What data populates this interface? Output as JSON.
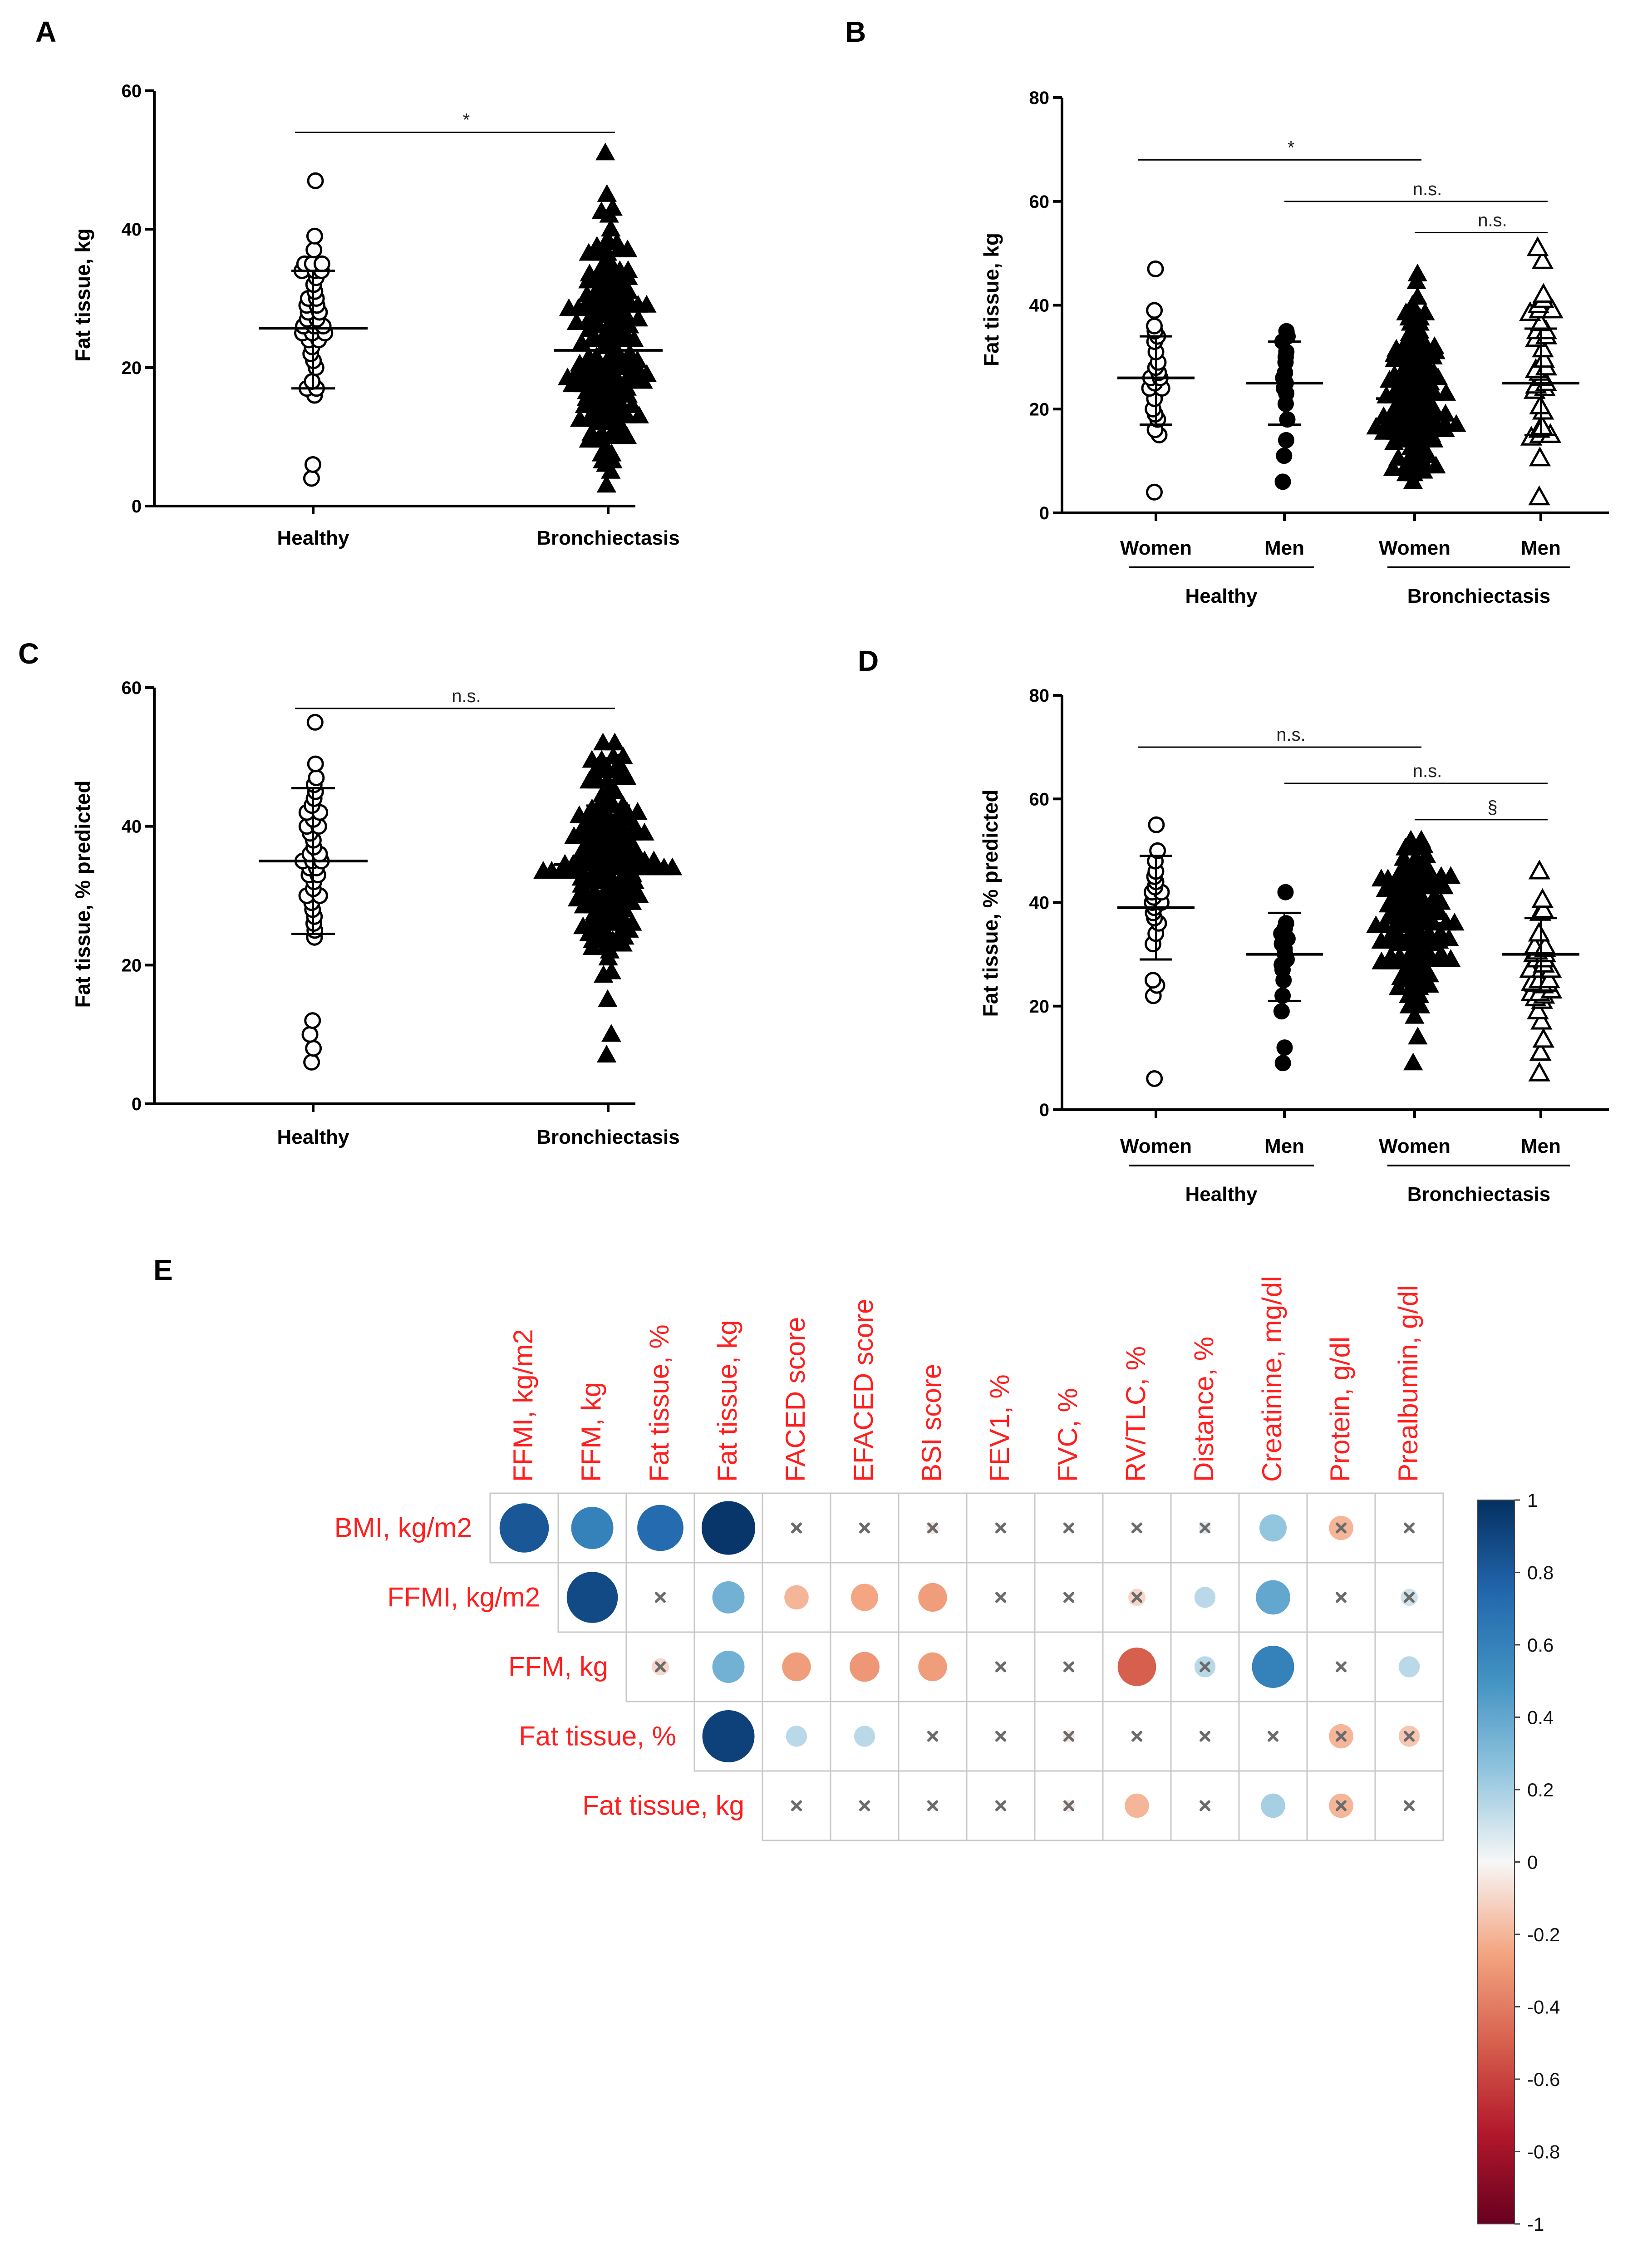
{
  "chart_data": [
    {
      "id": "A",
      "panel_label": "A",
      "type": "scatter",
      "ylabel": "Fat tissue, kg",
      "ylim": [
        0,
        60
      ],
      "yticks": [
        0,
        20,
        40,
        60
      ],
      "categories": [
        "Healthy",
        "Bronchiectasis"
      ],
      "groups": [
        {
          "name": "Healthy",
          "marker": "circle-open",
          "n": 38,
          "values": [
            47,
            39,
            37,
            35,
            35,
            35,
            34,
            34,
            34,
            33,
            32,
            31,
            30,
            30,
            29,
            29,
            28,
            28,
            27,
            27,
            26,
            26,
            26,
            25,
            25,
            25,
            24,
            24,
            23,
            22,
            21,
            20,
            18,
            17,
            17,
            16,
            6,
            4
          ],
          "mean": 25.7,
          "sd_low": 17,
          "sd_high": 34
        },
        {
          "name": "Bronchiectasis",
          "marker": "triangle-filled",
          "n": 160,
          "min": 3,
          "max": 51,
          "mean": 22.5,
          "sd_low": 13.3,
          "sd_high": 31.8
        }
      ],
      "comparisons": [
        {
          "from": "Healthy",
          "to": "Bronchiectasis",
          "y": 54,
          "label": "*"
        }
      ]
    },
    {
      "id": "B",
      "panel_label": "B",
      "type": "scatter",
      "ylabel": "Fat tissue, kg",
      "ylim": [
        0,
        80
      ],
      "yticks": [
        0,
        20,
        40,
        60,
        80
      ],
      "categories": [
        "Women",
        "Men",
        "Women",
        "Men"
      ],
      "supercategories": [
        {
          "label": "Healthy",
          "span": [
            0,
            1
          ]
        },
        {
          "label": "Bronchiectasis",
          "span": [
            2,
            3
          ]
        }
      ],
      "groups": [
        {
          "name": "Healthy Women",
          "marker": "circle-open",
          "n": 22,
          "values": [
            47,
            39,
            36,
            35,
            34,
            33,
            31,
            29,
            28,
            27,
            26,
            26,
            25,
            24,
            24,
            22,
            20,
            19,
            18,
            16,
            15,
            4
          ],
          "mean": 26,
          "sd_low": 17,
          "sd_high": 34
        },
        {
          "name": "Healthy Men",
          "marker": "circle-filled",
          "n": 16,
          "values": [
            35,
            34,
            33,
            31,
            30,
            29,
            27,
            26,
            25,
            24,
            23,
            21,
            18,
            14,
            11,
            6
          ],
          "mean": 25,
          "sd_low": 17,
          "sd_high": 33
        },
        {
          "name": "Bronchiectasis Women",
          "marker": "triangle-filled",
          "n": 130,
          "min": 6,
          "max": 46,
          "mean": 22,
          "sd_low": 13,
          "sd_high": 31
        },
        {
          "name": "Bronchiectasis Men",
          "marker": "triangle-open",
          "n": 32,
          "min": 3,
          "max": 51,
          "mean": 25,
          "sd_low": 15,
          "sd_high": 35.5
        }
      ],
      "comparisons": [
        {
          "from": "Women",
          "to": "Women",
          "from_index": 0,
          "to_index": 2,
          "y": 68,
          "label": "*"
        },
        {
          "from": "Men",
          "to": "Men",
          "from_index": 1,
          "to_index": 3,
          "y": 60,
          "label": "n.s."
        },
        {
          "from": "Women",
          "to": "Men",
          "from_index": 2,
          "to_index": 3,
          "y": 54,
          "label": "n.s."
        }
      ]
    },
    {
      "id": "C",
      "panel_label": "C",
      "type": "scatter",
      "ylabel": "Fat tissue, % predicted",
      "ylim": [
        0,
        60
      ],
      "yticks": [
        0,
        20,
        40,
        60
      ],
      "categories": [
        "Healthy",
        "Bronchiectasis"
      ],
      "groups": [
        {
          "name": "Healthy",
          "marker": "circle-open",
          "n": 38,
          "values": [
            55,
            49,
            47,
            46,
            45,
            44,
            43,
            42,
            42,
            41,
            40,
            40,
            39,
            38,
            37,
            36,
            36,
            35,
            35,
            35,
            34,
            34,
            33,
            33,
            32,
            31,
            30,
            30,
            29,
            28,
            27,
            26,
            25,
            24,
            12,
            10,
            8,
            6
          ],
          "mean": 35,
          "sd_low": 24.5,
          "sd_high": 45.5
        },
        {
          "name": "Bronchiectasis",
          "marker": "triangle-filled",
          "n": 160,
          "min": 7,
          "max": 52,
          "mean": 34.5,
          "sd_low": 26,
          "sd_high": 43
        }
      ],
      "comparisons": [
        {
          "from": "Healthy",
          "to": "Bronchiectasis",
          "y": 57,
          "label": "n.s."
        }
      ]
    },
    {
      "id": "D",
      "panel_label": "D",
      "type": "scatter",
      "ylabel": "Fat tissue, % predicted",
      "ylim": [
        0,
        80
      ],
      "yticks": [
        0,
        20,
        40,
        60,
        80
      ],
      "categories": [
        "Women",
        "Men",
        "Women",
        "Men"
      ],
      "supercategories": [
        {
          "label": "Healthy",
          "span": [
            0,
            1
          ]
        },
        {
          "label": "Bronchiectasis",
          "span": [
            2,
            3
          ]
        }
      ],
      "groups": [
        {
          "name": "Healthy Women",
          "marker": "circle-open",
          "n": 22,
          "values": [
            55,
            50,
            48,
            46,
            45,
            44,
            43,
            42,
            42,
            41,
            40,
            40,
            39,
            38,
            37,
            36,
            34,
            32,
            25,
            24,
            22,
            6
          ],
          "mean": 39,
          "sd_low": 29,
          "sd_high": 49
        },
        {
          "name": "Healthy Men",
          "marker": "circle-filled",
          "n": 16,
          "values": [
            42,
            36,
            35,
            34,
            33,
            32,
            31,
            30,
            29,
            28,
            27,
            25,
            22,
            19,
            12,
            9
          ],
          "mean": 30,
          "sd_low": 21,
          "sd_high": 38
        },
        {
          "name": "Bronchiectasis Women",
          "marker": "triangle-filled",
          "n": 130,
          "min": 9,
          "max": 52,
          "mean": 36,
          "sd_low": 28,
          "sd_high": 44
        },
        {
          "name": "Bronchiectasis Men",
          "marker": "triangle-open",
          "n": 32,
          "min": 7,
          "max": 46,
          "mean": 30,
          "sd_low": 23,
          "sd_high": 37
        }
      ],
      "comparisons": [
        {
          "from": "Women",
          "to": "Women",
          "from_index": 0,
          "to_index": 2,
          "y": 70,
          "label": "n.s."
        },
        {
          "from": "Men",
          "to": "Men",
          "from_index": 1,
          "to_index": 3,
          "y": 63,
          "label": "n.s."
        },
        {
          "from": "Women",
          "to": "Men",
          "from_index": 2,
          "to_index": 3,
          "y": 56,
          "label": "§"
        }
      ]
    },
    {
      "id": "E",
      "panel_label": "E",
      "type": "heatmap",
      "style": "upper-triangle correlation circles",
      "columns": [
        "FFMI, kg/m2",
        "FFM, kg",
        "Fat tissue, %",
        "Fat tissue, kg",
        "FACED score",
        "EFACED score",
        "BSI score",
        "FEV1, %",
        "FVC, %",
        "RV/TLC, %",
        "Distance, %",
        "Creatinine, mg/dl",
        "Protein, g/dl",
        "Prealbumin, g/dl"
      ],
      "rows": [
        {
          "label": "BMI, kg/m2",
          "start_col": 0,
          "cells": [
            {
              "r": 0.82,
              "x": false
            },
            {
              "r": 0.6,
              "x": false
            },
            {
              "r": 0.72,
              "x": false
            },
            {
              "r": 0.97,
              "x": false
            },
            {
              "r": 0,
              "x": true
            },
            {
              "r": 0,
              "x": true
            },
            {
              "r": -0.05,
              "x": true
            },
            {
              "r": 0,
              "x": true
            },
            {
              "r": 0,
              "x": true
            },
            {
              "r": 0,
              "x": true
            },
            {
              "r": 0.05,
              "x": true
            },
            {
              "r": 0.25,
              "x": false
            },
            {
              "r": -0.2,
              "x": true
            },
            {
              "r": 0,
              "x": true
            }
          ]
        },
        {
          "label": "FFMI, kg/m2",
          "start_col": 1,
          "cells": [
            {
              "r": 0.88,
              "x": false
            },
            {
              "r": 0,
              "x": true
            },
            {
              "r": 0.35,
              "x": false
            },
            {
              "r": -0.2,
              "x": false
            },
            {
              "r": -0.25,
              "x": false
            },
            {
              "r": -0.28,
              "x": false
            },
            {
              "r": 0,
              "x": true
            },
            {
              "r": 0,
              "x": true
            },
            {
              "r": -0.1,
              "x": true
            },
            {
              "r": 0.15,
              "x": false
            },
            {
              "r": 0.4,
              "x": false
            },
            {
              "r": 0,
              "x": true
            },
            {
              "r": 0.1,
              "x": true
            }
          ]
        },
        {
          "label": "FFM, kg",
          "start_col": 2,
          "cells": [
            {
              "r": -0.1,
              "x": true
            },
            {
              "r": 0.35,
              "x": false
            },
            {
              "r": -0.28,
              "x": false
            },
            {
              "r": -0.3,
              "x": false
            },
            {
              "r": -0.28,
              "x": false
            },
            {
              "r": 0,
              "x": true
            },
            {
              "r": 0,
              "x": true
            },
            {
              "r": -0.5,
              "x": false
            },
            {
              "r": 0.15,
              "x": true
            },
            {
              "r": 0.6,
              "x": false
            },
            {
              "r": 0,
              "x": true
            },
            {
              "r": 0.15,
              "x": false
            }
          ]
        },
        {
          "label": "Fat tissue, %",
          "start_col": 3,
          "cells": [
            {
              "r": 0.92,
              "x": false
            },
            {
              "r": 0.15,
              "x": false
            },
            {
              "r": 0.15,
              "x": false
            },
            {
              "r": 0,
              "x": true
            },
            {
              "r": 0,
              "x": true
            },
            {
              "r": -0.05,
              "x": true
            },
            {
              "r": 0,
              "x": true
            },
            {
              "r": 0,
              "x": true
            },
            {
              "r": 0,
              "x": true
            },
            {
              "r": -0.2,
              "x": true
            },
            {
              "r": -0.15,
              "x": true
            }
          ]
        },
        {
          "label": "Fat tissue, kg",
          "start_col": 4,
          "cells": [
            {
              "r": 0,
              "x": true
            },
            {
              "r": 0,
              "x": true
            },
            {
              "r": 0,
              "x": true
            },
            {
              "r": 0,
              "x": true
            },
            {
              "r": -0.05,
              "x": true
            },
            {
              "r": -0.2,
              "x": false
            },
            {
              "r": 0,
              "x": true
            },
            {
              "r": 0.2,
              "x": false
            },
            {
              "r": -0.2,
              "x": true
            },
            {
              "r": 0,
              "x": true
            }
          ]
        }
      ],
      "colorbar": {
        "min": -1,
        "max": 1,
        "ticks": [
          "1",
          "0.8",
          "0.6",
          "0.4",
          "0.2",
          "0",
          "-0.2",
          "-0.4",
          "-0.6",
          "-0.8",
          "-1"
        ],
        "high_color": "#053061",
        "zero_color": "#ffffff",
        "low_color": "#67001f"
      }
    }
  ]
}
